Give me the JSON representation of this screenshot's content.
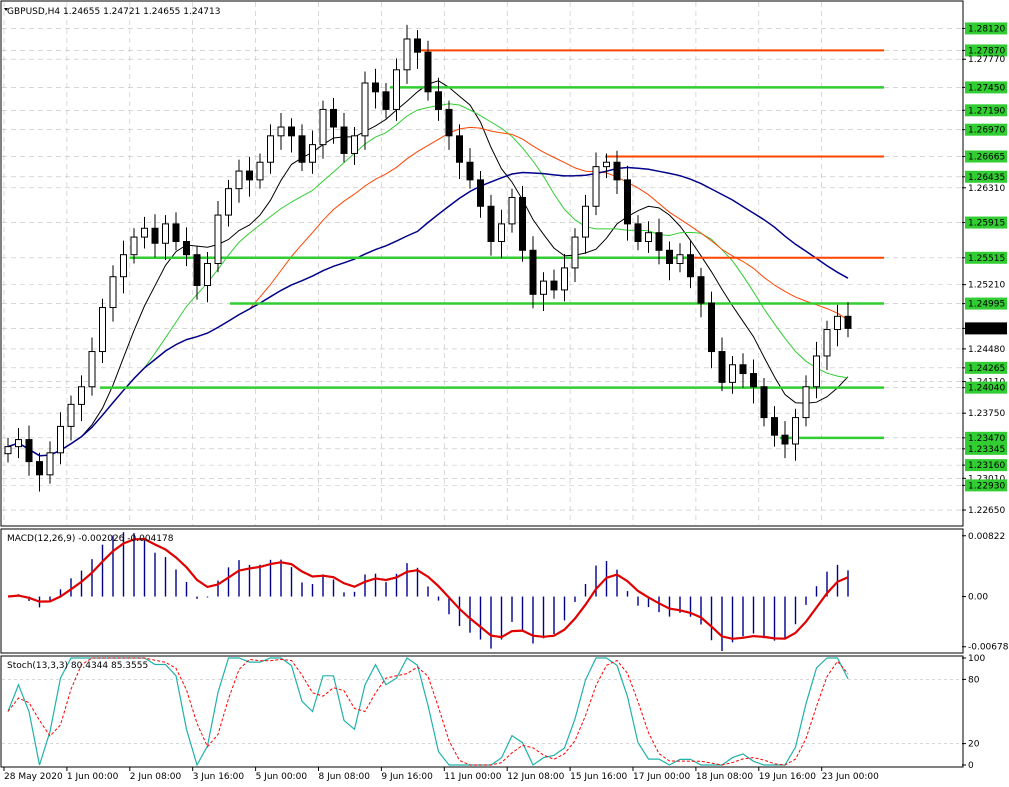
{
  "chart_data": [
    {
      "type": "candlestick",
      "title": "GBPUSD,H4  1.24655  1.24721  1.24655  1.24713",
      "symbol": "GBPUSD",
      "timeframe": "H4",
      "ohlc_last": [
        1.24655,
        1.24721,
        1.24655,
        1.24713
      ],
      "ylim": [
        1.2248,
        1.2842
      ],
      "y_tick_labels": [
        "1.28120",
        "1.27870",
        "1.27770",
        "1.27450",
        "1.27190",
        "1.26970",
        "1.26665",
        "1.26435",
        "1.26310",
        "1.25915",
        "1.25515",
        "1.25210",
        "1.24995",
        "1.24713",
        "1.24480",
        "1.24265",
        "1.24110",
        "1.24040",
        "1.23750",
        "1.23470",
        "1.23345",
        "1.23160",
        "1.23010",
        "1.22930",
        "1.22650"
      ],
      "current_price": "1.24713",
      "x_tick_labels": [
        "28 May 2020",
        "1 Jun 00:00",
        "2 Jun 08:00",
        "3 Jun 16:00",
        "5 Jun 00:00",
        "8 Jun 08:00",
        "9 Jun 16:00",
        "11 Jun 00:00",
        "12 Jun 08:00",
        "15 Jun 16:00",
        "17 Jun 00:00",
        "18 Jun 08:00",
        "19 Jun 16:00",
        "23 Jun 00:00"
      ],
      "close": [
        1.2337,
        1.2345,
        1.232,
        1.2305,
        1.233,
        1.236,
        1.2385,
        1.2405,
        1.2445,
        1.2495,
        1.253,
        1.2555,
        1.2575,
        1.2585,
        1.2568,
        1.259,
        1.257,
        1.2555,
        1.252,
        1.2545,
        1.26,
        1.263,
        1.265,
        1.264,
        1.266,
        1.269,
        1.27,
        1.269,
        1.266,
        1.268,
        1.272,
        1.27,
        1.267,
        1.269,
        1.275,
        1.274,
        1.272,
        1.2765,
        1.28,
        1.2785,
        1.274,
        1.272,
        1.269,
        1.266,
        1.264,
        1.261,
        1.257,
        1.259,
        1.262,
        1.256,
        1.251,
        1.2525,
        1.2515,
        1.254,
        1.2575,
        1.261,
        1.2655,
        1.266,
        1.264,
        1.259,
        1.257,
        1.258,
        1.256,
        1.2545,
        1.2555,
        1.253,
        1.25,
        1.2445,
        1.241,
        1.243,
        1.242,
        1.2405,
        1.237,
        1.235,
        1.234,
        1.237,
        1.2405,
        1.244,
        1.247,
        1.2485,
        1.24713
      ],
      "horizontal_levels": [
        {
          "price": 1.2787,
          "color": "#ff4500"
        },
        {
          "price": 1.2745,
          "color": "#32cd32"
        },
        {
          "price": 1.26665,
          "color": "#ff4500"
        },
        {
          "price": 1.25515,
          "color": "#32cd32"
        },
        {
          "price": 1.25515,
          "color": "#ff4500"
        },
        {
          "price": 1.24995,
          "color": "#32cd32"
        },
        {
          "price": 1.2404,
          "color": "#32cd32"
        },
        {
          "price": 1.2347,
          "color": "#32cd32"
        }
      ],
      "moving_averages": [
        {
          "color": "#000000"
        },
        {
          "color": "#32cd32"
        },
        {
          "color": "#ff4500"
        },
        {
          "color": "#00008b"
        }
      ]
    },
    {
      "type": "histogram+line",
      "title": "MACD(12,26,9) -0.002026 -0.004178",
      "ylim": [
        -0.0075,
        0.009
      ],
      "y_tick_labels": [
        "0.00822",
        "0.00",
        "-0.006789"
      ],
      "histogram_color": "#00008b",
      "signal_color": "#e00000"
    },
    {
      "type": "line",
      "title": "Stoch(13,3,3) 80.4344 85.3555",
      "ylim": [
        0,
        100
      ],
      "y_tick_labels": [
        "100",
        "80",
        "20",
        "0"
      ],
      "main_color": "#20b2aa",
      "signal_color": "#ff0000",
      "main_last": 80.4344,
      "signal_last": 85.3555
    }
  ]
}
